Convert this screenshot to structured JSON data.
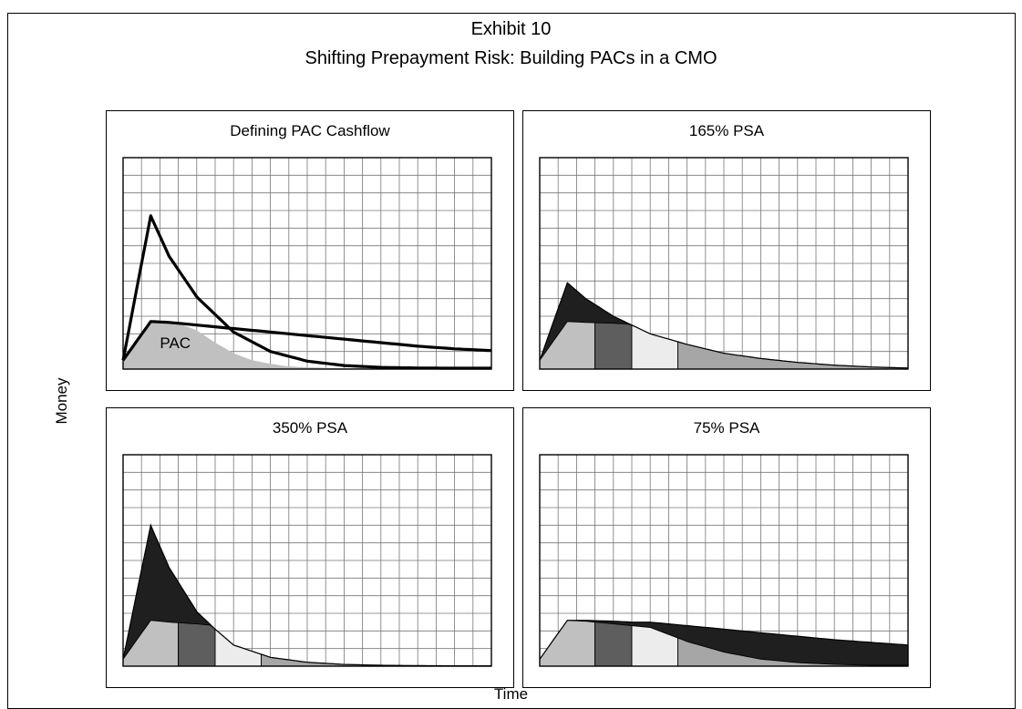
{
  "title": "Exhibit 10",
  "subtitle": "Shifting Prepayment Risk: Building PACs in a CMO",
  "axes": {
    "y_label": "Money",
    "x_label": "Time"
  },
  "chart_data": [
    {
      "type": "line",
      "title": "Defining PAC Cashflow",
      "grid": true,
      "xlim": [
        0,
        20
      ],
      "ylim": [
        0,
        12
      ],
      "x": [
        0,
        1.5,
        2.5,
        4,
        6,
        8,
        10,
        12,
        14,
        16,
        18,
        20
      ],
      "series": [
        {
          "values": [
            0.5,
            8.7,
            6.4,
            4.1,
            2.1,
            1.0,
            0.45,
            0.2,
            0.1,
            0.06,
            0.05,
            0.05
          ]
        },
        {
          "values": [
            0.5,
            2.7,
            2.65,
            2.5,
            2.3,
            2.1,
            1.9,
            1.7,
            1.5,
            1.3,
            1.15,
            1.05
          ]
        }
      ],
      "pac_area": {
        "label": "PAC",
        "x": [
          0,
          1.5,
          3,
          4,
          5,
          6,
          7,
          8,
          9,
          10,
          12,
          14,
          20
        ],
        "values": [
          0.5,
          2.7,
          2.6,
          2.2,
          1.5,
          0.9,
          0.5,
          0.3,
          0.15,
          0.1,
          0.05,
          0.05,
          0.05
        ]
      }
    },
    {
      "type": "area",
      "title": "165% PSA",
      "grid": true,
      "xlim": [
        0,
        20
      ],
      "ylim": [
        0,
        12
      ],
      "x": [
        0,
        1.5,
        2.5,
        4,
        5,
        6,
        8,
        10,
        12,
        14,
        16,
        18,
        20
      ],
      "series": [
        {
          "role": "total-cashflow",
          "values": [
            0.5,
            4.9,
            4.0,
            3.0,
            2.5,
            2.0,
            1.4,
            0.9,
            0.6,
            0.38,
            0.22,
            0.12,
            0.06
          ]
        },
        {
          "role": "pac-tranche-1",
          "values": [
            0.5,
            2.7,
            2.65,
            2.6,
            2.55,
            2.5,
            2.2,
            1.5,
            0.9,
            0.5,
            0.25,
            0.12,
            0.06
          ]
        },
        {
          "role": "pac-tranche-2",
          "values": [
            0.5,
            2.7,
            2.65,
            2.6,
            2.55,
            2.5,
            2.2,
            1.5,
            0.9,
            0.5,
            0.25,
            0.12,
            0.06
          ]
        }
      ]
    },
    {
      "type": "area",
      "title": "350% PSA",
      "grid": true,
      "xlim": [
        0,
        20
      ],
      "ylim": [
        0,
        12
      ],
      "x": [
        0,
        1.5,
        2.5,
        4,
        5,
        6,
        8,
        10,
        12,
        14,
        16,
        18,
        20
      ],
      "series": [
        {
          "role": "total-cashflow",
          "values": [
            0.4,
            8.0,
            5.6,
            3.1,
            2.1,
            1.2,
            0.5,
            0.22,
            0.1,
            0.05,
            0.03,
            0.02,
            0.02
          ]
        },
        {
          "role": "pac-tranche-1",
          "values": [
            0.4,
            2.6,
            2.5,
            2.4,
            2.3,
            1.2,
            0.5,
            0.22,
            0.1,
            0.05,
            0.03,
            0.02,
            0.02
          ]
        }
      ]
    },
    {
      "type": "area",
      "title": "75% PSA",
      "grid": true,
      "xlim": [
        0,
        20
      ],
      "ylim": [
        0,
        12
      ],
      "x": [
        0,
        1.5,
        2.5,
        4,
        5,
        6,
        8,
        10,
        12,
        14,
        16,
        18,
        20
      ],
      "series": [
        {
          "role": "total-cashflow",
          "values": [
            0.4,
            2.6,
            2.6,
            2.55,
            2.5,
            2.5,
            2.3,
            2.1,
            1.9,
            1.7,
            1.5,
            1.35,
            1.2
          ]
        },
        {
          "role": "pac-tranche-1",
          "values": [
            0.4,
            2.6,
            2.55,
            2.4,
            2.3,
            2.2,
            1.4,
            0.8,
            0.4,
            0.2,
            0.1,
            0.05,
            0.05
          ]
        }
      ]
    }
  ],
  "colors": {
    "grid": "#777777",
    "outline": "#000000",
    "pac_fill": "#c0c0c0",
    "tranche_1": "#c0c0c0",
    "tranche_2": "#5e5e5e",
    "tranche_3": "#ececec",
    "tranche_4": "#a6a6a6",
    "support": "#1f1f1f"
  }
}
